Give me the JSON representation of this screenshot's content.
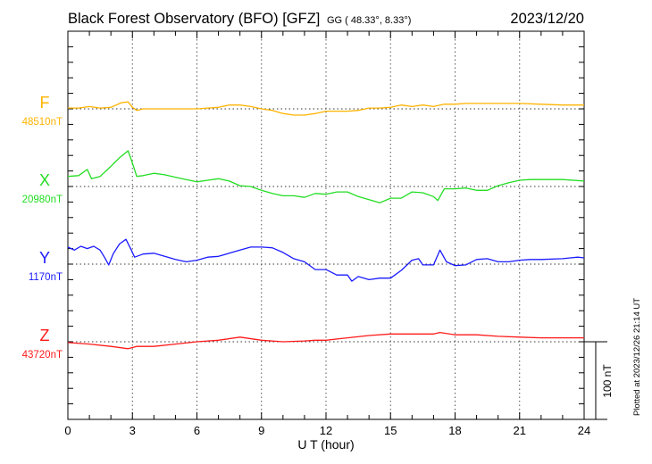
{
  "header": {
    "title": "Black Forest Observatory (BFO)  [GFZ]",
    "coords": "GG ( 48.33°,   8.33°)",
    "date": "2023/12/20"
  },
  "footer": {
    "plotted": "Plotted at 2023/12/26 21:14 UT",
    "scale_label": "100 nT"
  },
  "chart_data": {
    "type": "line",
    "title": "Black Forest Observatory (BFO)  [GFZ]",
    "xlabel": "U T (hour)",
    "ylabel": "",
    "xlim": [
      0,
      24
    ],
    "xticks": [
      "0",
      "3",
      "6",
      "9",
      "12",
      "15",
      "18",
      "21",
      "24"
    ],
    "grid": true,
    "units_per_tick_nT": 20,
    "scale_bar_nT": 100,
    "series": [
      {
        "name": "F",
        "baseline_label": "48510nT",
        "color": "#ffb300",
        "points": [
          [
            0,
            1
          ],
          [
            0.5,
            1
          ],
          [
            1,
            3
          ],
          [
            1.5,
            1
          ],
          [
            2,
            2
          ],
          [
            2.5,
            8
          ],
          [
            2.8,
            9
          ],
          [
            3,
            2
          ],
          [
            3.2,
            -2
          ],
          [
            3.5,
            0
          ],
          [
            4,
            0
          ],
          [
            5,
            0
          ],
          [
            6,
            0
          ],
          [
            6.5,
            1
          ],
          [
            7,
            2
          ],
          [
            7.5,
            5
          ],
          [
            8,
            5
          ],
          [
            8.5,
            3
          ],
          [
            9,
            0
          ],
          [
            9.5,
            -2
          ],
          [
            10,
            -6
          ],
          [
            10.5,
            -8
          ],
          [
            11,
            -8
          ],
          [
            11.5,
            -6
          ],
          [
            12,
            -3
          ],
          [
            12.5,
            -3
          ],
          [
            13,
            -3
          ],
          [
            13.5,
            -2
          ],
          [
            14,
            1
          ],
          [
            14.5,
            1
          ],
          [
            15,
            2
          ],
          [
            15.5,
            5
          ],
          [
            16,
            3
          ],
          [
            16.5,
            5
          ],
          [
            17,
            3
          ],
          [
            17.5,
            6
          ],
          [
            18,
            6
          ],
          [
            18.5,
            7
          ],
          [
            19,
            7
          ],
          [
            20,
            7
          ],
          [
            21,
            7
          ],
          [
            22,
            6
          ],
          [
            23,
            5
          ],
          [
            24,
            5
          ]
        ]
      },
      {
        "name": "X",
        "baseline_label": "20980nT",
        "color": "#22dd22",
        "points": [
          [
            0,
            13
          ],
          [
            0.5,
            14
          ],
          [
            0.9,
            22
          ],
          [
            1.1,
            10
          ],
          [
            1.5,
            13
          ],
          [
            2,
            26
          ],
          [
            2.4,
            37
          ],
          [
            2.8,
            46
          ],
          [
            3,
            30
          ],
          [
            3.2,
            13
          ],
          [
            3.5,
            14
          ],
          [
            4,
            17
          ],
          [
            4.5,
            15
          ],
          [
            5,
            12
          ],
          [
            5.5,
            9
          ],
          [
            6,
            6
          ],
          [
            6.5,
            8
          ],
          [
            7,
            10
          ],
          [
            7.5,
            7
          ],
          [
            8,
            1
          ],
          [
            8.5,
            0
          ],
          [
            9,
            -5
          ],
          [
            9.5,
            -9
          ],
          [
            10,
            -12
          ],
          [
            10.5,
            -12
          ],
          [
            11,
            -14
          ],
          [
            11.5,
            -9
          ],
          [
            12,
            -10
          ],
          [
            12.5,
            -7
          ],
          [
            13,
            -7
          ],
          [
            13.5,
            -13
          ],
          [
            14,
            -17
          ],
          [
            14.5,
            -21
          ],
          [
            15,
            -15
          ],
          [
            15.5,
            -15
          ],
          [
            16,
            -7
          ],
          [
            16.5,
            -8
          ],
          [
            17,
            -13
          ],
          [
            17.2,
            -18
          ],
          [
            17.5,
            -3
          ],
          [
            18,
            -3
          ],
          [
            18.5,
            -2
          ],
          [
            19,
            -5
          ],
          [
            19.5,
            -5
          ],
          [
            20,
            1
          ],
          [
            20.5,
            5
          ],
          [
            21,
            8
          ],
          [
            21.5,
            9
          ],
          [
            22,
            9
          ],
          [
            23,
            9
          ],
          [
            24,
            7
          ]
        ]
      },
      {
        "name": "Y",
        "baseline_label": "1170nT",
        "color": "#1a1aff",
        "points": [
          [
            0,
            22
          ],
          [
            0.3,
            18
          ],
          [
            0.6,
            23
          ],
          [
            0.9,
            20
          ],
          [
            1.2,
            23
          ],
          [
            1.5,
            18
          ],
          [
            1.7,
            9
          ],
          [
            1.9,
            -1
          ],
          [
            2.1,
            13
          ],
          [
            2.4,
            26
          ],
          [
            2.7,
            32
          ],
          [
            2.9,
            21
          ],
          [
            3.1,
            9
          ],
          [
            3.5,
            13
          ],
          [
            4,
            14
          ],
          [
            4.5,
            10
          ],
          [
            5,
            6
          ],
          [
            5.5,
            3
          ],
          [
            6,
            5
          ],
          [
            6.5,
            9
          ],
          [
            7,
            10
          ],
          [
            7.5,
            14
          ],
          [
            8,
            18
          ],
          [
            8.5,
            22
          ],
          [
            9,
            22
          ],
          [
            9.5,
            21
          ],
          [
            10,
            15
          ],
          [
            10.5,
            7
          ],
          [
            11,
            3
          ],
          [
            11.5,
            -7
          ],
          [
            12,
            -7
          ],
          [
            12.5,
            -14
          ],
          [
            13,
            -14
          ],
          [
            13.2,
            -22
          ],
          [
            13.5,
            -16
          ],
          [
            14,
            -20
          ],
          [
            14.5,
            -18
          ],
          [
            15,
            -18
          ],
          [
            15.5,
            -8
          ],
          [
            16,
            5
          ],
          [
            16.3,
            7
          ],
          [
            16.5,
            -1
          ],
          [
            17,
            -1
          ],
          [
            17.3,
            18
          ],
          [
            17.6,
            3
          ],
          [
            18,
            -2
          ],
          [
            18.5,
            -1
          ],
          [
            19,
            6
          ],
          [
            19.5,
            7
          ],
          [
            20,
            3
          ],
          [
            20.5,
            3
          ],
          [
            21,
            5
          ],
          [
            21.5,
            6
          ],
          [
            22,
            6
          ],
          [
            23,
            7
          ],
          [
            23.7,
            9
          ],
          [
            24,
            8
          ]
        ]
      },
      {
        "name": "Z",
        "baseline_label": "43720nT",
        "color": "#ff1a1a",
        "points": [
          [
            0,
            -1
          ],
          [
            1,
            -3
          ],
          [
            2,
            -6
          ],
          [
            2.8,
            -9
          ],
          [
            3.2,
            -6
          ],
          [
            4,
            -6
          ],
          [
            5,
            -3
          ],
          [
            6,
            0
          ],
          [
            7,
            2
          ],
          [
            8,
            6
          ],
          [
            9,
            2
          ],
          [
            10,
            0
          ],
          [
            11,
            1
          ],
          [
            11.5,
            2
          ],
          [
            12,
            2
          ],
          [
            13,
            5
          ],
          [
            14,
            8
          ],
          [
            15,
            10
          ],
          [
            16,
            10
          ],
          [
            17,
            10
          ],
          [
            17.3,
            12
          ],
          [
            18,
            9
          ],
          [
            19,
            9
          ],
          [
            20,
            7
          ],
          [
            21,
            6
          ],
          [
            22,
            5
          ],
          [
            24,
            5
          ]
        ]
      }
    ]
  }
}
